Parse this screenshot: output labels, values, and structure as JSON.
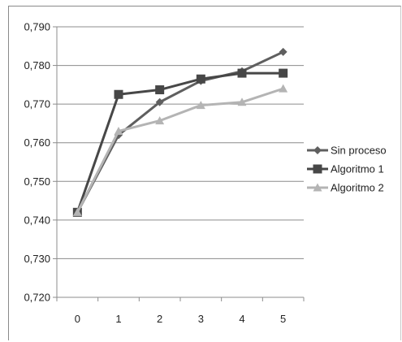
{
  "chart_data": {
    "type": "line",
    "x": [
      0,
      1,
      2,
      3,
      4,
      5
    ],
    "categories": [
      "0",
      "1",
      "2",
      "3",
      "4",
      "5"
    ],
    "ylim": [
      0.72,
      0.79
    ],
    "y_ticks": [
      "0,720",
      "0,730",
      "0,740",
      "0,750",
      "0,760",
      "0,770",
      "0,780",
      "0,790"
    ],
    "grid": true,
    "legend_position": "right",
    "series": [
      {
        "name": "Sin proceso",
        "marker": "diamond",
        "color": "#5f5f5f",
        "values": [
          0.742,
          0.762,
          0.7705,
          0.776,
          0.7785,
          0.7835
        ]
      },
      {
        "name": "Algoritmo 1",
        "marker": "square",
        "color": "#474747",
        "values": [
          0.742,
          0.7725,
          0.7737,
          0.7765,
          0.778,
          0.778
        ]
      },
      {
        "name": "Algoritmo 2",
        "marker": "triangle",
        "color": "#b4b4b4",
        "values": [
          0.742,
          0.763,
          0.7657,
          0.7697,
          0.7705,
          0.774
        ]
      }
    ]
  }
}
